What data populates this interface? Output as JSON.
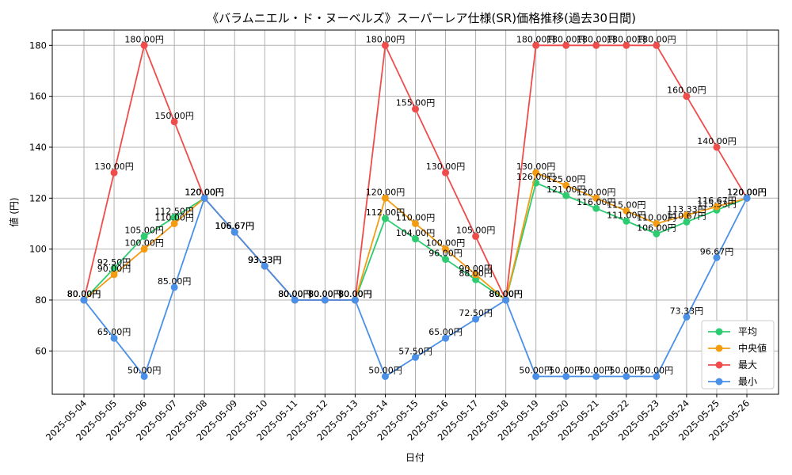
{
  "chart_data": {
    "type": "line",
    "title": "《バラムニエル・ド・ヌーベルズ》スーパーレア仕様(SR)価格推移(過去30日間)",
    "xlabel": "日付",
    "ylabel": "値 (円)",
    "ylim": [
      43,
      186
    ],
    "yticks": [
      60,
      80,
      100,
      120,
      140,
      160,
      180
    ],
    "grid": true,
    "legend_position": "bottom-right",
    "label_suffix": "円",
    "categories": [
      "2025-05-04",
      "2025-05-05",
      "2025-05-06",
      "2025-05-07",
      "2025-05-08",
      "2025-05-09",
      "2025-05-10",
      "2025-05-11",
      "2025-05-12",
      "2025-05-13",
      "2025-05-14",
      "2025-05-15",
      "2025-05-16",
      "2025-05-17",
      "2025-05-18",
      "2025-05-19",
      "2025-05-20",
      "2025-05-21",
      "2025-05-22",
      "2025-05-23",
      "2025-05-24",
      "2025-05-25",
      "2025-05-26"
    ],
    "series": [
      {
        "name": "平均",
        "color": "#2ecc71",
        "values": [
          80.0,
          92.5,
          105.0,
          112.5,
          120.0,
          106.67,
          93.33,
          80.0,
          80.0,
          80.0,
          112.0,
          104.0,
          96.0,
          88.0,
          80.0,
          126.0,
          121.0,
          116.0,
          111.0,
          106.0,
          110.67,
          115.33,
          120.0
        ]
      },
      {
        "name": "中央値",
        "color": "#f39c12",
        "values": [
          80.0,
          90.0,
          100.0,
          110.0,
          120.0,
          106.67,
          93.33,
          80.0,
          80.0,
          80.0,
          120.0,
          110.0,
          100.0,
          90.0,
          80.0,
          130.0,
          125.0,
          120.0,
          115.0,
          110.0,
          113.33,
          116.67,
          120.0
        ]
      },
      {
        "name": "最大",
        "color": "#ef4c4c",
        "values": [
          80.0,
          130.0,
          180.0,
          150.0,
          120.0,
          106.67,
          93.33,
          80.0,
          80.0,
          80.0,
          180.0,
          155.0,
          130.0,
          105.0,
          80.0,
          180.0,
          180.0,
          180.0,
          180.0,
          180.0,
          160.0,
          140.0,
          120.0
        ]
      },
      {
        "name": "最小",
        "color": "#4a90e8",
        "values": [
          80.0,
          65.0,
          50.0,
          85.0,
          120.0,
          106.67,
          93.33,
          80.0,
          80.0,
          80.0,
          50.0,
          57.5,
          65.0,
          72.5,
          80.0,
          50.0,
          50.0,
          50.0,
          50.0,
          50.0,
          73.33,
          96.67,
          120.0
        ]
      }
    ]
  }
}
